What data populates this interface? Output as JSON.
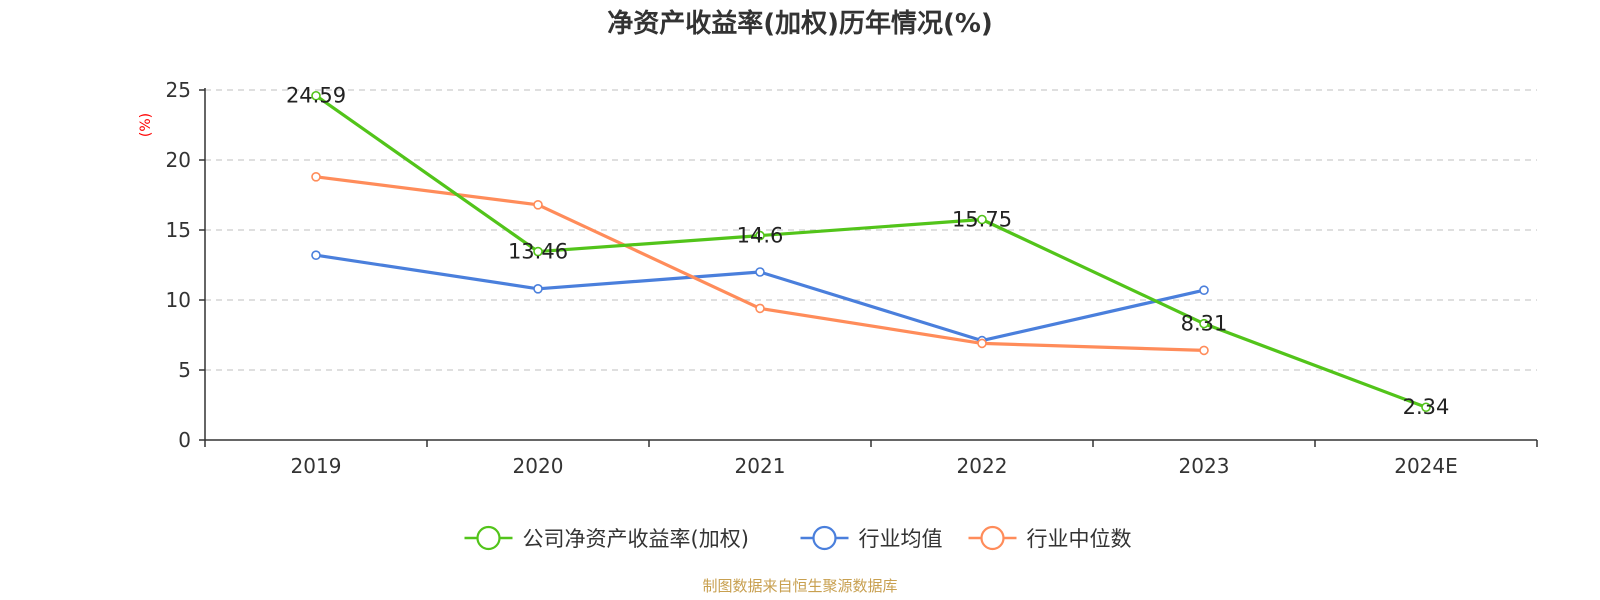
{
  "chart_data": {
    "type": "line",
    "title": "净资产收益率(加权)历年情况(%)",
    "ylabel": "(%)",
    "xlabel": "",
    "categories": [
      "2019",
      "2020",
      "2021",
      "2022",
      "2023",
      "2024E"
    ],
    "ylim": [
      0,
      25
    ],
    "yticks": [
      0,
      5,
      10,
      15,
      20,
      25
    ],
    "grid": "horizontal-dashed",
    "legend_position": "bottom-center",
    "series": [
      {
        "name": "公司净资产收益率(加权)",
        "color": "#52c41a",
        "values": [
          24.59,
          13.46,
          14.6,
          15.75,
          8.31,
          2.34
        ],
        "labels": [
          "24.59",
          "13.46",
          "14.6",
          "15.75",
          "8.31",
          "2.34"
        ]
      },
      {
        "name": "行业均值",
        "color": "#4a7fdc",
        "values": [
          13.2,
          10.8,
          12.0,
          7.1,
          10.7,
          null
        ]
      },
      {
        "name": "行业中位数",
        "color": "#ff8c5a",
        "values": [
          18.8,
          16.8,
          9.4,
          6.9,
          6.4,
          null
        ]
      }
    ]
  },
  "source_text": "制图数据来自恒生聚源数据库",
  "source_color": "#c8a050"
}
